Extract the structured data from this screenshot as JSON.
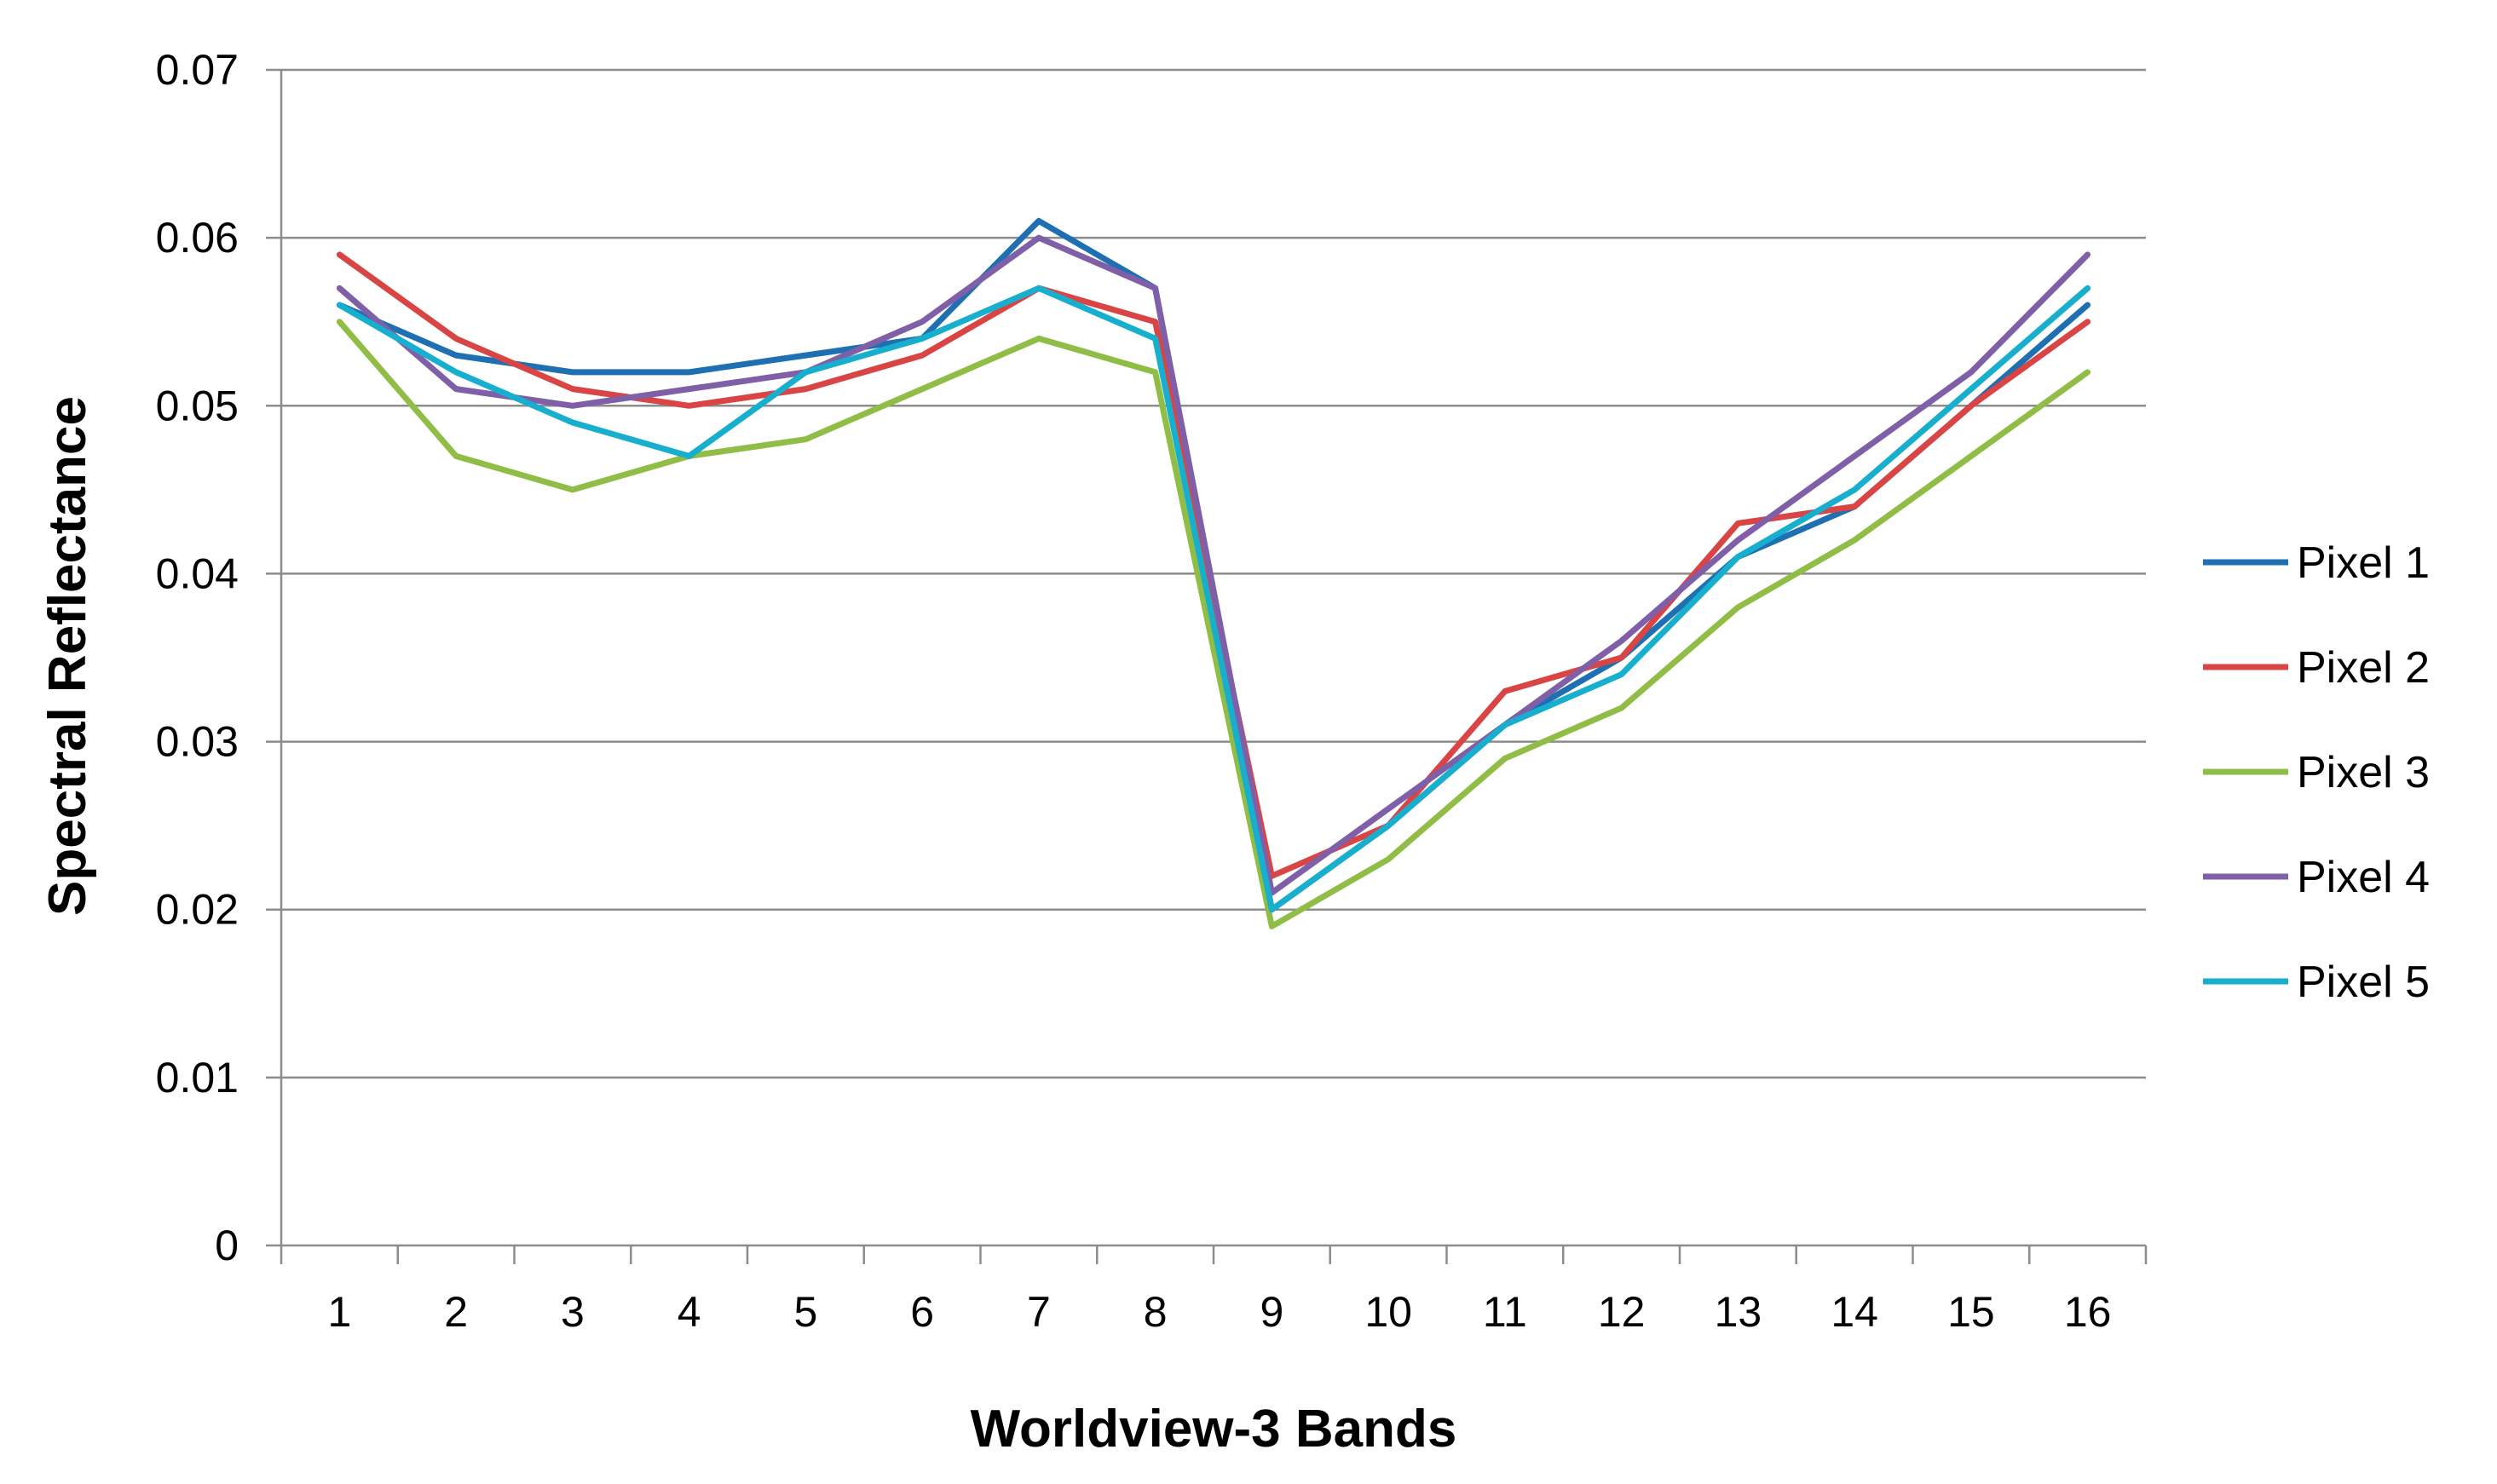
{
  "chart_data": {
    "type": "line",
    "title": "",
    "xlabel": "Worldview-3 Bands",
    "ylabel": "Spectral Reflectance",
    "categories": [
      "1",
      "2",
      "3",
      "4",
      "5",
      "6",
      "7",
      "8",
      "9",
      "10",
      "11",
      "12",
      "13",
      "14",
      "15",
      "16"
    ],
    "ylim": [
      0,
      0.07
    ],
    "yticks": [
      "0",
      "0.01",
      "0.02",
      "0.03",
      "0.04",
      "0.05",
      "0.06",
      "0.07"
    ],
    "grid": true,
    "legend_position": "right",
    "series": [
      {
        "name": "Pixel 1",
        "color": "#1f6fb3",
        "values": [
          0.056,
          0.053,
          0.052,
          0.052,
          0.053,
          0.054,
          0.061,
          0.057,
          0.02,
          0.025,
          0.031,
          0.035,
          0.041,
          0.044,
          0.05,
          0.056
        ]
      },
      {
        "name": "Pixel 2",
        "color": "#d94545",
        "values": [
          0.059,
          0.054,
          0.051,
          0.05,
          0.051,
          0.053,
          0.057,
          0.055,
          0.022,
          0.025,
          0.033,
          0.035,
          0.043,
          0.044,
          0.05,
          0.055
        ]
      },
      {
        "name": "Pixel 3",
        "color": "#8fbd45",
        "values": [
          0.055,
          0.047,
          0.045,
          0.047,
          0.048,
          0.051,
          0.054,
          0.052,
          0.019,
          0.023,
          0.029,
          0.032,
          0.038,
          0.042,
          0.047,
          0.052
        ]
      },
      {
        "name": "Pixel 4",
        "color": "#7f5fa8",
        "values": [
          0.057,
          0.051,
          0.05,
          0.051,
          0.052,
          0.055,
          0.06,
          0.057,
          0.021,
          0.026,
          0.031,
          0.036,
          0.042,
          0.047,
          0.052,
          0.059
        ]
      },
      {
        "name": "Pixel 5",
        "color": "#18aecd",
        "values": [
          0.056,
          0.052,
          0.049,
          0.047,
          0.052,
          0.054,
          0.057,
          0.054,
          0.02,
          0.025,
          0.031,
          0.034,
          0.041,
          0.045,
          0.051,
          0.057
        ]
      }
    ]
  }
}
